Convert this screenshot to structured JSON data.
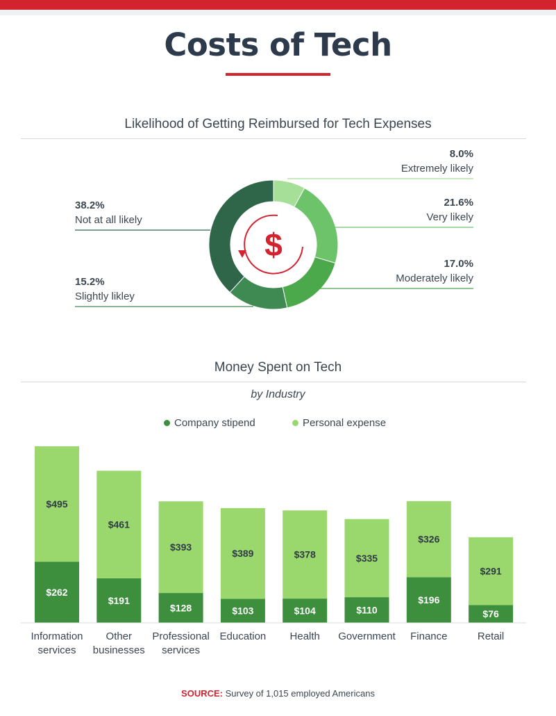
{
  "page": {
    "title": "Costs of Tech",
    "source_label": "SOURCE:",
    "source_text": "Survey of 1,015 employed Americans"
  },
  "colors": {
    "accent_red": "#d2232e",
    "company_stipend": "#3d8f3d",
    "personal_expense": "#9ad86e",
    "text_dark": "#2c3a4b"
  },
  "icons": {
    "center": "dollar-cycle-icon"
  },
  "chart_data": [
    {
      "type": "pie",
      "title": "Likelihood of Getting Reimbursed for Tech Expenses",
      "unit": "%",
      "slices": [
        {
          "label": "Extremely likely",
          "value": 8.0,
          "display": "8.0%",
          "color": "#a6df97"
        },
        {
          "label": "Very likely",
          "value": 21.6,
          "display": "21.6%",
          "color": "#6cc36a"
        },
        {
          "label": "Moderately likely",
          "value": 17.0,
          "display": "17.0%",
          "color": "#4ba84b"
        },
        {
          "label": "Slightly likley",
          "value": 15.2,
          "display": "15.2%",
          "color": "#3e8a52"
        },
        {
          "label": "Not at all likely",
          "value": 38.2,
          "display": "38.2%",
          "color": "#2f6549"
        }
      ]
    },
    {
      "type": "bar",
      "stacked": true,
      "title": "Money Spent on Tech",
      "subtitle": "by Industry",
      "categories": [
        [
          "Information",
          "services"
        ],
        [
          "Other",
          "businesses"
        ],
        [
          "Professional",
          "services"
        ],
        [
          "Education"
        ],
        [
          "Health"
        ],
        [
          "Government"
        ],
        [
          "Finance"
        ],
        [
          "Retail"
        ]
      ],
      "series": [
        {
          "name": "Company stipend",
          "color": "#3d8f3d",
          "values": [
            262,
            191,
            128,
            103,
            104,
            110,
            196,
            76
          ]
        },
        {
          "name": "Personal expense",
          "color": "#9ad86e",
          "values": [
            495,
            461,
            393,
            389,
            378,
            335,
            326,
            291
          ]
        }
      ],
      "value_prefix": "$",
      "grid": false,
      "legend": "top-center"
    }
  ]
}
